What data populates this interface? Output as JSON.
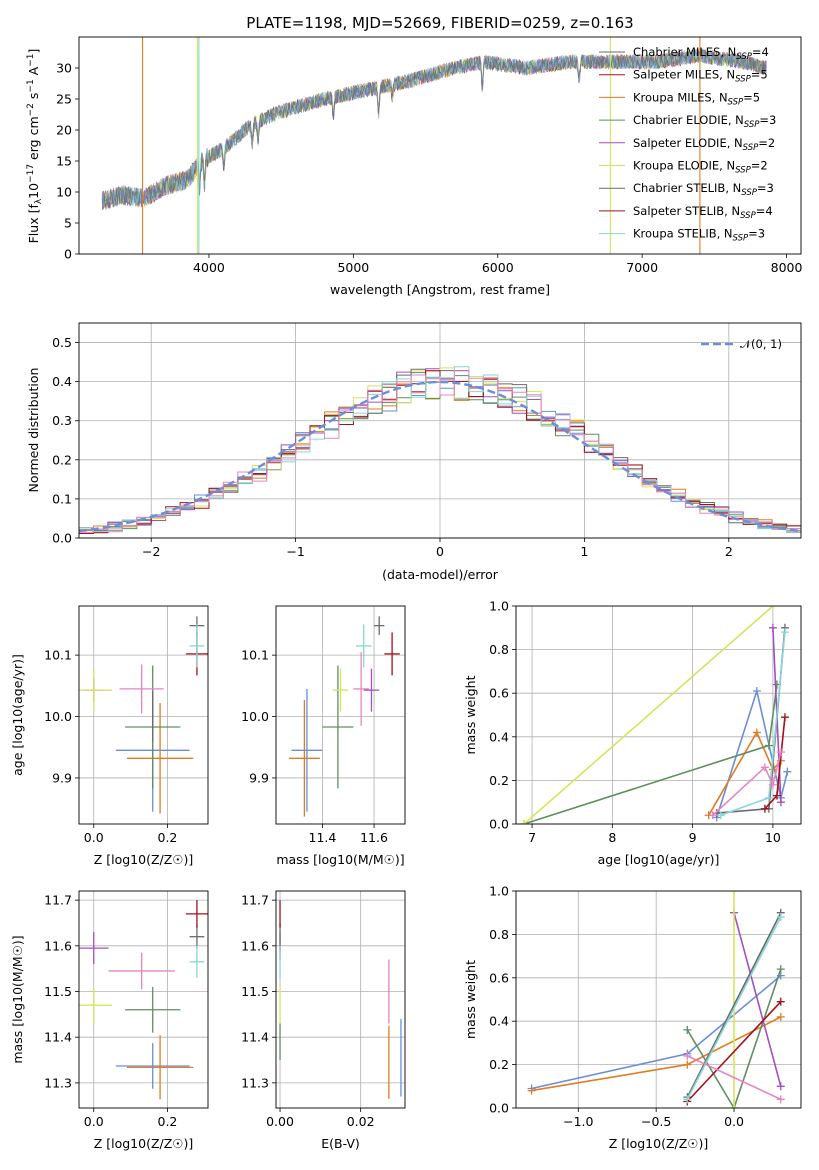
{
  "colors": {
    "c1": "#6a8ed8",
    "c2": "#e07c22",
    "c3": "#5f8f5f",
    "c4": "#a34fbf",
    "c5": "#d5e45a",
    "c6": "#6b6b6b",
    "c7": "#a5101a",
    "c8": "#86d6d6",
    "c9": "#e884c0"
  },
  "chart_data": [
    {
      "id": "spectrum",
      "type": "line",
      "title": "PLATE=1198, MJD=52669, FIBERID=0259, z=0.163",
      "xlabel": "wavelength [Angstrom, rest frame]",
      "ylabel": "Flux [f_λ 10^-17 erg cm^-2 s^-1 A^-1]",
      "xlim": [
        3100,
        8100
      ],
      "ylim": [
        0,
        35
      ],
      "xticks": [
        "4000",
        "5000",
        "6000",
        "7000",
        "8000"
      ],
      "yticks": [
        "0",
        "5",
        "10",
        "15",
        "20",
        "25",
        "30"
      ],
      "grid": false,
      "legend_position": "top-right",
      "legend": [
        {
          "label": "Chabrier MILES, N",
          "sub": "SSP",
          "tail": "=4",
          "color": "#6b6b6b"
        },
        {
          "label": "Salpeter MILES, N",
          "sub": "SSP",
          "tail": "=5",
          "color": "#a5101a"
        },
        {
          "label": "Kroupa MILES, N",
          "sub": "SSP",
          "tail": "=5",
          "color": "#e07c22"
        },
        {
          "label": "Chabrier ELODIE, N",
          "sub": "SSP",
          "tail": "=3",
          "color": "#5f8f5f"
        },
        {
          "label": "Salpeter ELODIE, N",
          "sub": "SSP",
          "tail": "=2",
          "color": "#a34fbf"
        },
        {
          "label": "Kroupa ELODIE, N",
          "sub": "SSP",
          "tail": "=2",
          "color": "#d5e45a"
        },
        {
          "label": "Chabrier STELIB, N",
          "sub": "SSP",
          "tail": "=3",
          "color": "#6b6b6b"
        },
        {
          "label": "Salpeter STELIB, N",
          "sub": "SSP",
          "tail": "=4",
          "color": "#a5101a"
        },
        {
          "label": "Kroupa STELIB, N",
          "sub": "SSP",
          "tail": "=3",
          "color": "#86d6d6"
        }
      ],
      "continuum": [
        [
          3250,
          8.5
        ],
        [
          3400,
          9.5
        ],
        [
          3550,
          9
        ],
        [
          3700,
          11
        ],
        [
          3850,
          12
        ],
        [
          3950,
          15
        ],
        [
          4100,
          17
        ],
        [
          4300,
          21
        ],
        [
          4500,
          23
        ],
        [
          4800,
          25
        ],
        [
          5000,
          26
        ],
        [
          5200,
          27
        ],
        [
          5400,
          28
        ],
        [
          5700,
          30
        ],
        [
          5900,
          31
        ],
        [
          6200,
          30
        ],
        [
          6500,
          31
        ],
        [
          6800,
          31
        ],
        [
          7100,
          31
        ],
        [
          7400,
          32
        ],
        [
          7700,
          31
        ],
        [
          7850,
          30
        ]
      ]
    },
    {
      "id": "residuals",
      "type": "step",
      "xlabel": "(data-model)/error",
      "ylabel": "Normed distribution",
      "xlim": [
        -2.5,
        2.5
      ],
      "ylim": [
        0,
        0.55
      ],
      "xticks": [
        "−2",
        "−1",
        "0",
        "1",
        "2"
      ],
      "yticks": [
        "0.0",
        "0.1",
        "0.2",
        "0.3",
        "0.4",
        "0.5"
      ],
      "grid": true,
      "legend_position": "top-right",
      "legend": [
        {
          "label": "𝒩(0, 1)",
          "color": "#6a8ed8",
          "style": "dashed"
        }
      ],
      "bin_width": 0.1
    },
    {
      "id": "age-vs-Z",
      "type": "scatter",
      "xlabel": "Z [log10(Z/Z☉)]",
      "ylabel": "age  [log10(age/yr)]",
      "xlim": [
        -0.04,
        0.31
      ],
      "ylim": [
        9.825,
        10.18
      ],
      "xticks": [
        "0.0",
        "0.2"
      ],
      "yticks": [
        "9.9",
        "10.0",
        "10.1"
      ],
      "grid": true,
      "points": [
        {
          "x": 0.16,
          "y": 9.945,
          "xerr": 0.1,
          "yerr": 0.1,
          "color": "#6a8ed8"
        },
        {
          "x": 0.18,
          "y": 9.932,
          "xerr": 0.09,
          "yerr": 0.09,
          "color": "#e07c22"
        },
        {
          "x": 0.16,
          "y": 9.983,
          "xerr": 0.075,
          "yerr": 0.1,
          "color": "#5f8f5f"
        },
        {
          "x": 0.0,
          "y": 10.043,
          "xerr": 0.03,
          "yerr": 0.02,
          "color": "#a34fbf"
        },
        {
          "x": 0.0,
          "y": 10.043,
          "xerr": 0.05,
          "yerr": 0.035,
          "color": "#d5e45a"
        },
        {
          "x": 0.28,
          "y": 10.148,
          "xerr": 0.02,
          "yerr": 0.015,
          "color": "#6b6b6b"
        },
        {
          "x": 0.28,
          "y": 10.102,
          "xerr": 0.03,
          "yerr": 0.035,
          "color": "#a5101a"
        },
        {
          "x": 0.28,
          "y": 10.115,
          "xerr": 0.02,
          "yerr": 0.035,
          "color": "#86d6d6"
        },
        {
          "x": 0.13,
          "y": 10.045,
          "xerr": 0.06,
          "yerr": 0.04,
          "color": "#e884c0"
        },
        {
          "x": 0.16,
          "y": 10.0,
          "xerr": 0.0,
          "yerr": 0.04,
          "color": "#6b6b6b"
        }
      ]
    },
    {
      "id": "age-vs-mass",
      "type": "scatter",
      "xlabel": "mass [log10(M/M☉)]",
      "ylabel": "",
      "xlim": [
        11.22,
        11.72
      ],
      "ylim": [
        9.825,
        10.18
      ],
      "xticks": [
        "11.4",
        "11.6"
      ],
      "yticks": [
        "9.9",
        "10.0",
        "10.1"
      ],
      "grid": true,
      "points": [
        {
          "x": 11.34,
          "y": 9.945,
          "xerr": 0.06,
          "yerr": 0.1,
          "color": "#6a8ed8"
        },
        {
          "x": 11.33,
          "y": 9.932,
          "xerr": 0.06,
          "yerr": 0.095,
          "color": "#e07c22"
        },
        {
          "x": 11.46,
          "y": 9.983,
          "xerr": 0.06,
          "yerr": 0.1,
          "color": "#5f8f5f"
        },
        {
          "x": 11.59,
          "y": 10.043,
          "xerr": 0.03,
          "yerr": 0.035,
          "color": "#a34fbf"
        },
        {
          "x": 11.47,
          "y": 10.043,
          "xerr": 0.03,
          "yerr": 0.035,
          "color": "#d5e45a"
        },
        {
          "x": 11.62,
          "y": 10.148,
          "xerr": 0.02,
          "yerr": 0.015,
          "color": "#6b6b6b"
        },
        {
          "x": 11.67,
          "y": 10.102,
          "xerr": 0.03,
          "yerr": 0.035,
          "color": "#a5101a"
        },
        {
          "x": 11.56,
          "y": 10.115,
          "xerr": 0.03,
          "yerr": 0.035,
          "color": "#86d6d6"
        },
        {
          "x": 11.55,
          "y": 10.045,
          "xerr": 0.03,
          "yerr": 0.06,
          "color": "#e884c0"
        }
      ]
    },
    {
      "id": "weight-vs-age",
      "type": "line",
      "xlabel": "age  [log10(age/yr)]",
      "ylabel": "mass weight",
      "xlim": [
        6.8,
        10.35
      ],
      "ylim": [
        0,
        1
      ],
      "xticks": [
        "7",
        "8",
        "9",
        "10"
      ],
      "yticks": [
        "0.0",
        "0.2",
        "0.4",
        "0.6",
        "0.8",
        "1.0"
      ],
      "grid": true,
      "series": [
        {
          "color": "#6a8ed8",
          "points": [
            [
              9.3,
              0.03
            ],
            [
              9.8,
              0.61
            ],
            [
              10.1,
              0.12
            ],
            [
              10.18,
              0.24
            ]
          ]
        },
        {
          "color": "#e07c22",
          "points": [
            [
              9.2,
              0.04
            ],
            [
              9.8,
              0.42
            ],
            [
              10.0,
              0.25
            ],
            [
              10.1,
              0.29
            ]
          ]
        },
        {
          "color": "#5f8f5f",
          "points": [
            [
              6.9,
              0.0
            ],
            [
              9.95,
              0.36
            ],
            [
              10.05,
              0.64
            ]
          ]
        },
        {
          "color": "#a34fbf",
          "points": [
            [
              10.0,
              0.9
            ],
            [
              10.1,
              0.1
            ]
          ]
        },
        {
          "color": "#d5e45a",
          "points": [
            [
              6.9,
              0.0
            ],
            [
              10.0,
              1.0
            ]
          ]
        },
        {
          "color": "#6b6b6b",
          "points": [
            [
              9.3,
              0.05
            ],
            [
              9.95,
              0.07
            ],
            [
              10.15,
              0.9
            ]
          ]
        },
        {
          "color": "#a5101a",
          "points": [
            [
              9.9,
              0.07
            ],
            [
              10.05,
              0.13
            ],
            [
              10.15,
              0.49
            ]
          ]
        },
        {
          "color": "#86d6d6",
          "points": [
            [
              9.35,
              0.04
            ],
            [
              9.95,
              0.12
            ],
            [
              10.15,
              0.88
            ]
          ]
        },
        {
          "color": "#e884c0",
          "points": [
            [
              9.25,
              0.04
            ],
            [
              9.9,
              0.26
            ],
            [
              10.0,
              0.18
            ],
            [
              10.1,
              0.33
            ]
          ]
        }
      ]
    },
    {
      "id": "mass-vs-Z",
      "type": "scatter",
      "xlabel": "Z [log10(Z/Z☉)]",
      "ylabel": "mass [log10(M/M☉)]",
      "xlim": [
        -0.04,
        0.31
      ],
      "ylim": [
        11.245,
        11.72
      ],
      "xticks": [
        "0.0",
        "0.2"
      ],
      "yticks": [
        "11.3",
        "11.4",
        "11.5",
        "11.6",
        "11.7"
      ],
      "grid": true,
      "points": [
        {
          "x": 0.16,
          "y": 11.337,
          "xerr": 0.1,
          "yerr": 0.05,
          "color": "#6a8ed8"
        },
        {
          "x": 0.18,
          "y": 11.334,
          "xerr": 0.09,
          "yerr": 0.07,
          "color": "#e07c22"
        },
        {
          "x": 0.16,
          "y": 11.46,
          "xerr": 0.075,
          "yerr": 0.05,
          "color": "#5f8f5f"
        },
        {
          "x": 0.0,
          "y": 11.595,
          "xerr": 0.04,
          "yerr": 0.035,
          "color": "#a34fbf"
        },
        {
          "x": 0.0,
          "y": 11.47,
          "xerr": 0.05,
          "yerr": 0.04,
          "color": "#d5e45a"
        },
        {
          "x": 0.28,
          "y": 11.62,
          "xerr": 0.02,
          "yerr": 0.025,
          "color": "#6b6b6b"
        },
        {
          "x": 0.28,
          "y": 11.67,
          "xerr": 0.03,
          "yerr": 0.03,
          "color": "#a5101a"
        },
        {
          "x": 0.28,
          "y": 11.565,
          "xerr": 0.02,
          "yerr": 0.035,
          "color": "#86d6d6"
        },
        {
          "x": 0.13,
          "y": 11.545,
          "xerr": 0.09,
          "yerr": 0.04,
          "color": "#e884c0"
        }
      ]
    },
    {
      "id": "mass-vs-ebv",
      "type": "scatter",
      "xlabel": "E(B-V)",
      "ylabel": "",
      "xlim": [
        -0.001,
        0.031
      ],
      "ylim": [
        11.245,
        11.72
      ],
      "xticks": [
        "0.00",
        "0.02"
      ],
      "yticks": [
        "11.3",
        "11.4",
        "11.5",
        "11.6",
        "11.7"
      ],
      "grid": true,
      "points": [
        {
          "x": 0.03,
          "y": 11.355,
          "xerr": 0.0,
          "yerr": 0.085,
          "color": "#6a8ed8"
        },
        {
          "x": 0.027,
          "y": 11.345,
          "xerr": 0.0,
          "yerr": 0.08,
          "color": "#e07c22"
        },
        {
          "x": 0.0,
          "y": 11.39,
          "xerr": 0.0,
          "yerr": 0.04,
          "color": "#5f8f5f"
        },
        {
          "x": 0.0,
          "y": 11.6,
          "xerr": 0.0,
          "yerr": 0.03,
          "color": "#a34fbf"
        },
        {
          "x": 0.0,
          "y": 11.47,
          "xerr": 0.0,
          "yerr": 0.04,
          "color": "#d5e45a"
        },
        {
          "x": 0.0,
          "y": 11.62,
          "xerr": 0.0,
          "yerr": 0.03,
          "color": "#6b6b6b"
        },
        {
          "x": 0.0,
          "y": 11.67,
          "xerr": 0.0,
          "yerr": 0.03,
          "color": "#a5101a"
        },
        {
          "x": 0.0,
          "y": 11.565,
          "xerr": 0.0,
          "yerr": 0.035,
          "color": "#86d6d6"
        },
        {
          "x": 0.027,
          "y": 11.5,
          "xerr": 0.0,
          "yerr": 0.07,
          "color": "#e884c0"
        }
      ]
    },
    {
      "id": "weight-vs-Z",
      "type": "line",
      "xlabel": "Z [log10(Z/Z☉)]",
      "ylabel": "mass weight",
      "xlim": [
        -1.4,
        0.43
      ],
      "ylim": [
        0,
        1
      ],
      "xticks": [
        "−1.0",
        "−0.5",
        "0.0"
      ],
      "yticks": [
        "0.0",
        "0.2",
        "0.4",
        "0.6",
        "0.8",
        "1.0"
      ],
      "grid": true,
      "series": [
        {
          "color": "#6a8ed8",
          "points": [
            [
              -1.3,
              0.09
            ],
            [
              -0.3,
              0.25
            ],
            [
              0.3,
              0.61
            ]
          ]
        },
        {
          "color": "#e07c22",
          "points": [
            [
              -1.3,
              0.08
            ],
            [
              -0.3,
              0.2
            ],
            [
              0.3,
              0.42
            ]
          ]
        },
        {
          "color": "#5f8f5f",
          "points": [
            [
              -0.3,
              0.36
            ],
            [
              0.0,
              0.0
            ],
            [
              0.3,
              0.64
            ]
          ]
        },
        {
          "color": "#a34fbf",
          "points": [
            [
              0.0,
              0.9
            ],
            [
              0.3,
              0.1
            ]
          ]
        },
        {
          "color": "#d5e45a",
          "points": [
            [
              0.0,
              0.0
            ],
            [
              0.0,
              1.0
            ]
          ]
        },
        {
          "color": "#6b6b6b",
          "points": [
            [
              -0.3,
              0.05
            ],
            [
              0.3,
              0.9
            ]
          ]
        },
        {
          "color": "#a5101a",
          "points": [
            [
              -0.3,
              0.03
            ],
            [
              0.3,
              0.49
            ]
          ]
        },
        {
          "color": "#86d6d6",
          "points": [
            [
              -0.3,
              0.04
            ],
            [
              0.3,
              0.88
            ]
          ]
        },
        {
          "color": "#e884c0",
          "points": [
            [
              -0.3,
              0.24
            ],
            [
              0.3,
              0.04
            ]
          ]
        }
      ]
    }
  ]
}
